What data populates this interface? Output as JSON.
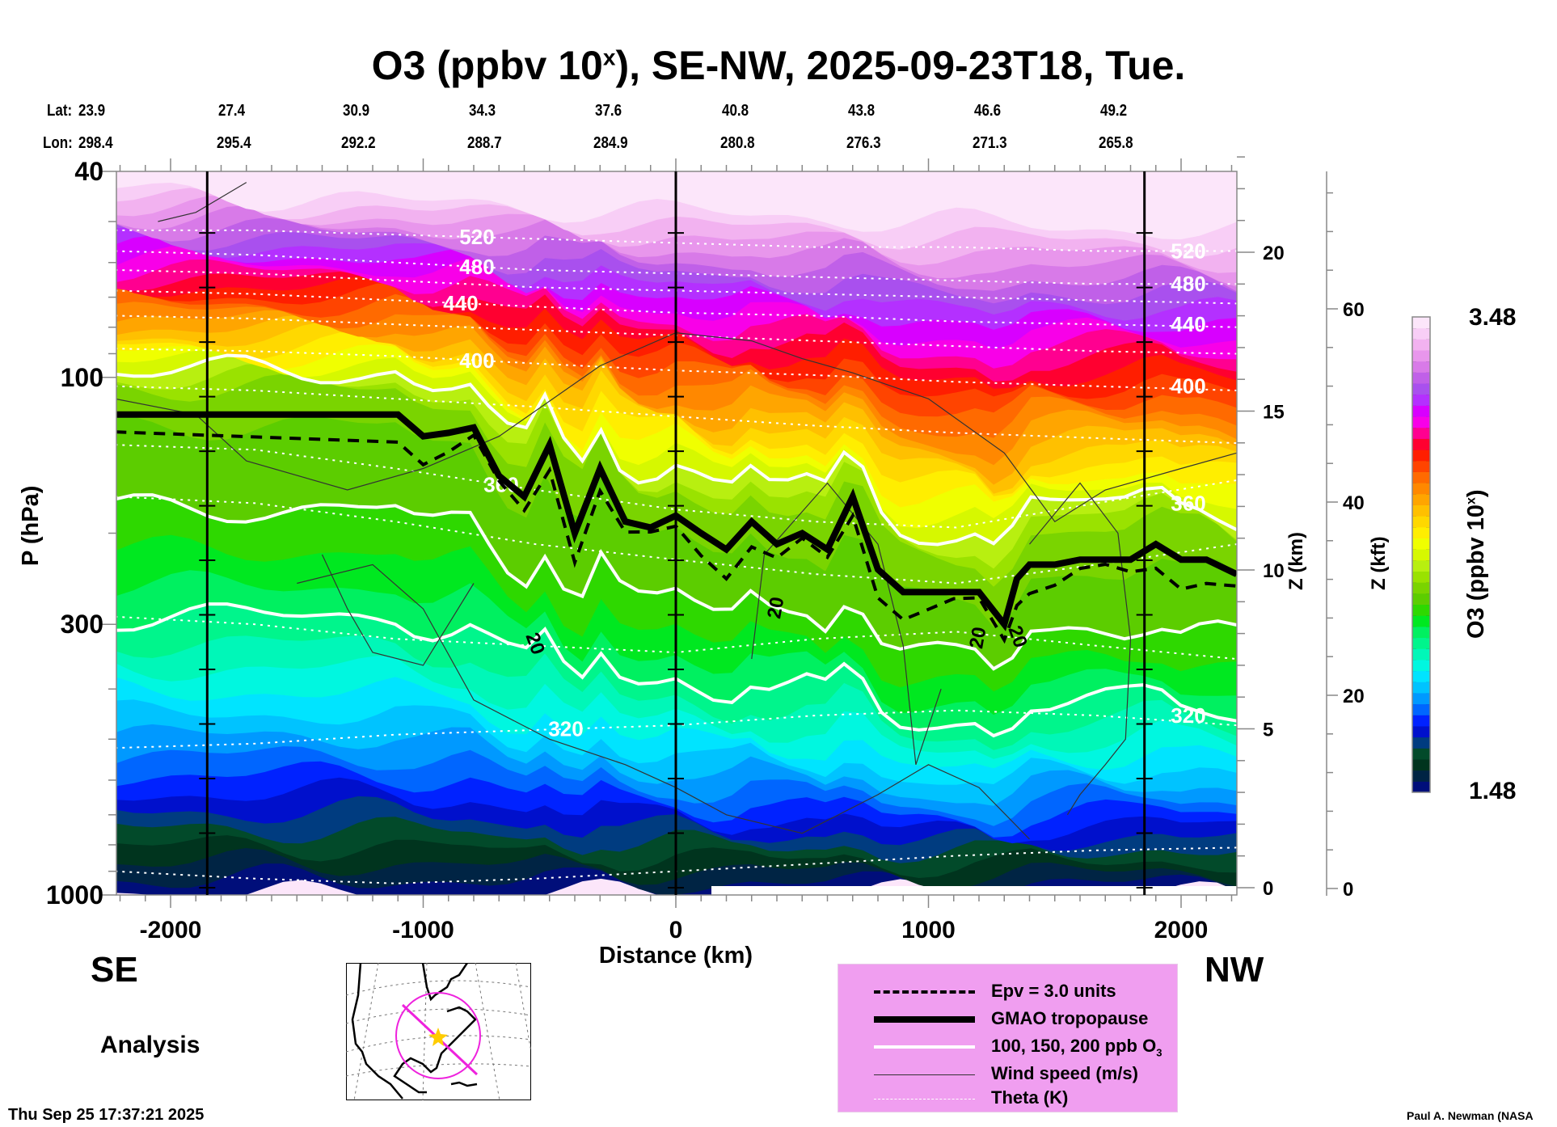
{
  "chart_data": {
    "type": "heatmap",
    "title": "O3 (ppbv 10",
    "title_sup": "x",
    "title_rest": "), SE-NW, 2025-09-23T18, Tue.",
    "xlabel": "Distance (km)",
    "ylabel": "P (hPa)",
    "xlim": [
      -2220,
      2220
    ],
    "ylim_hpa": [
      1000,
      40
    ],
    "x_ticks": [
      -2000,
      -1000,
      0,
      1000,
      2000
    ],
    "y_ticks": [
      40,
      100,
      300,
      1000
    ],
    "z_km_label": "Z (km)",
    "z_km_ticks": [
      0,
      5,
      10,
      15,
      20
    ],
    "z_kft_label": "Z (kft)",
    "z_kft_ticks": [
      0,
      20,
      40,
      60
    ],
    "vertical_marker_lines_km": [
      -1855,
      0,
      1855
    ],
    "lat_label": "Lat:",
    "lon_label": "Lon:",
    "lat": [
      "23.9",
      "27.4",
      "30.9",
      "34.3",
      "37.6",
      "40.8",
      "43.8",
      "46.6",
      "49.2"
    ],
    "lon": [
      "298.4",
      "295.4",
      "292.2",
      "288.7",
      "284.9",
      "280.8",
      "276.3",
      "271.3",
      "265.8"
    ],
    "direction_left": "SE",
    "direction_right": "NW",
    "theta_contours": [
      {
        "label": "520",
        "p_hpa": [
          52,
          52,
          53,
          54,
          55,
          56,
          56,
          57,
          57
        ]
      },
      {
        "label": "480",
        "p_hpa": [
          57,
          58,
          60,
          62,
          63,
          64,
          65,
          66,
          66
        ]
      },
      {
        "label": "",
        "p_hpa": [
          62,
          63,
          65,
          67,
          68,
          69,
          70,
          71,
          72
        ]
      },
      {
        "label": "440",
        "p_hpa": [
          68,
          69,
          71,
          73,
          75,
          76,
          78,
          79,
          80
        ]
      },
      {
        "label": "",
        "p_hpa": [
          76,
          77,
          79,
          81,
          83,
          85,
          87,
          89,
          90
        ]
      },
      {
        "label": "400",
        "p_hpa": [
          88,
          89,
          91,
          94,
          97,
          99,
          102,
          104,
          106
        ]
      },
      {
        "label": "",
        "p_hpa": [
          104,
          106,
          110,
          114,
          119,
          124,
          128,
          131,
          134
        ]
      },
      {
        "label": "360",
        "p_hpa": [
          135,
          138,
          150,
          165,
          180,
          190,
          195,
          175,
          158
        ]
      },
      {
        "label": "",
        "p_hpa": [
          170,
          175,
          190,
          210,
          225,
          240,
          250,
          230,
          210
        ]
      },
      {
        "label": "",
        "p_hpa": [
          290,
          300,
          320,
          330,
          340,
          320,
          310,
          330,
          350
        ]
      },
      {
        "label": "320",
        "p_hpa": [
          520,
          510,
          490,
          480,
          470,
          450,
          440,
          450,
          470
        ]
      },
      {
        "label": "",
        "p_hpa": [
          900,
          930,
          950,
          930,
          900,
          870,
          840,
          820,
          810
        ]
      }
    ],
    "tropopause_km_vs_hpa": {
      "x_km": [
        -2220,
        -1100,
        -1000,
        -900,
        -800,
        -700,
        -600,
        -500,
        -400,
        -300,
        -200,
        -100,
        0,
        100,
        200,
        300,
        400,
        500,
        600,
        700,
        800,
        900,
        1000,
        1100,
        1200,
        1300,
        1350,
        1400,
        1500,
        1600,
        1700,
        1800,
        1900,
        2000,
        2100,
        2220
      ],
      "p_hpa": [
        118,
        118,
        130,
        128,
        125,
        155,
        170,
        135,
        200,
        150,
        190,
        195,
        185,
        200,
        215,
        190,
        210,
        200,
        215,
        170,
        235,
        260,
        260,
        260,
        260,
        300,
        245,
        230,
        230,
        225,
        225,
        225,
        210,
        225,
        225,
        240
      ]
    },
    "colorbar": {
      "label": "O3 (ppbv 10",
      "label_sup": "x",
      "label_end": ")",
      "min": "1.48",
      "max": "3.48",
      "colors": [
        "#000e7a",
        "#002444",
        "#00341e",
        "#024a2a",
        "#003c80",
        "#0010cc",
        "#0022ff",
        "#0066ff",
        "#0099ff",
        "#00c3ff",
        "#00e4ff",
        "#00f7e0",
        "#00f7b8",
        "#00f58c",
        "#00f060",
        "#00e820",
        "#2ed800",
        "#5ccd00",
        "#7ad400",
        "#9ae200",
        "#b8ef10",
        "#d6f800",
        "#f0ff00",
        "#ffee00",
        "#ffd800",
        "#ffc000",
        "#ffa500",
        "#ff8800",
        "#ff6a00",
        "#ff4400",
        "#ff1e00",
        "#ff0030",
        "#ff0090",
        "#f800e8",
        "#d800ff",
        "#b430ff",
        "#a950ee",
        "#c060e8",
        "#d87ae8",
        "#e896ec",
        "#f2b2f0",
        "#f8cef6",
        "#fce6fa"
      ]
    },
    "legend": [
      {
        "label": "Epv = 3.0 units",
        "style": "dashed-black"
      },
      {
        "label": "GMAO tropopause",
        "style": "thick-black"
      },
      {
        "label": "100, 150, 200 ppb O",
        "sub": "3",
        "style": "white"
      },
      {
        "label": "Wind speed (m/s)",
        "style": "thin-black"
      },
      {
        "label": "Theta (K)",
        "style": "dotted-white"
      }
    ],
    "wind_label": "20"
  },
  "footer": {
    "analysis_label": "Analysis",
    "timestamp": "Thu Sep 25 17:37:21 2025",
    "credit": "Paul A. Newman (NASA"
  },
  "colors": {
    "legend_bg": "#f09ef0",
    "map_circle": "#ee22dd",
    "map_star": "#ffcc00"
  }
}
